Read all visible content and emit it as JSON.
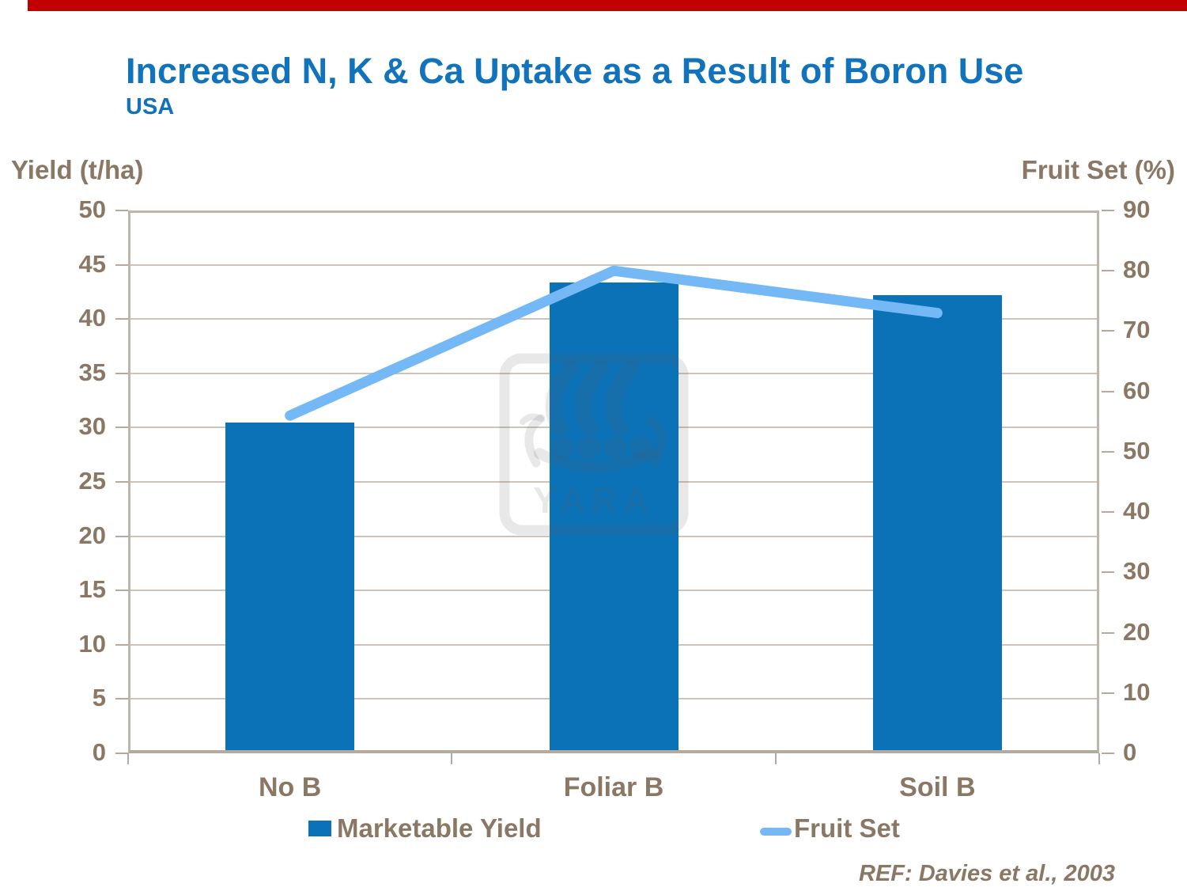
{
  "slide": {
    "title": "Increased N, K & Ca Uptake as a Result of Boron Use",
    "subtitle": "USA",
    "reference": "REF: Davies et al., 2003"
  },
  "legend": {
    "bar_label": "Marketable Yield",
    "line_label": "Fruit Set"
  },
  "watermark": {
    "text": "YARA"
  },
  "colors": {
    "accent_bar": "#C00000",
    "title_blue": "#1173BC",
    "text_brown": "#8A7864",
    "bar_blue": "#0B72B8",
    "line_blue": "#74B8F6",
    "gridline_tan": "#CDC3B8",
    "border_tan": "#B5AA9E"
  },
  "chart_data": {
    "type": "bar",
    "subtype": "bar+line-dual-axis",
    "title": "Increased N, K & Ca Uptake as a Result of Boron Use (USA)",
    "categories": [
      "No B",
      "Foliar B",
      "Soil B"
    ],
    "series": [
      {
        "name": "Marketable Yield",
        "type": "bar",
        "axis": "left",
        "values": [
          30.5,
          43.4,
          42.2
        ]
      },
      {
        "name": "Fruit Set",
        "type": "line",
        "axis": "right",
        "values": [
          56,
          80,
          73
        ]
      }
    ],
    "left_axis": {
      "label": "Yield (t/ha)",
      "min": 0,
      "max": 50,
      "tick_step": 5,
      "ticks": [
        50,
        45,
        40,
        35,
        30,
        25,
        20,
        15,
        10,
        5,
        0
      ]
    },
    "right_axis": {
      "label": "Fruit Set (%)",
      "min": 0,
      "max": 90,
      "tick_step": 10,
      "ticks": [
        90,
        80,
        70,
        60,
        50,
        40,
        30,
        20,
        10,
        0
      ]
    },
    "grid": true,
    "legend_position": "bottom"
  }
}
